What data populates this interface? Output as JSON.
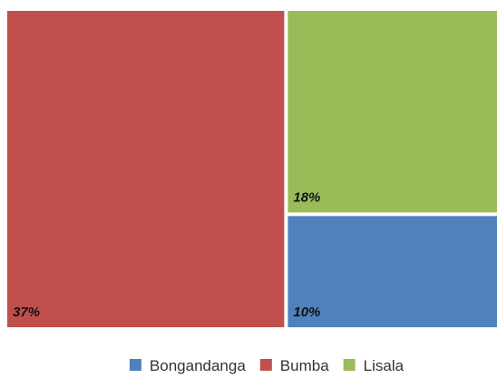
{
  "chart_data": {
    "type": "treemap",
    "series": [
      {
        "name": "Bongandanga",
        "value": 10,
        "label": "10%",
        "color": "#4f81bd"
      },
      {
        "name": "Bumba",
        "value": 37,
        "label": "37%",
        "color": "#c0504d"
      },
      {
        "name": "Lisala",
        "value": 18,
        "label": "18%",
        "color": "#9bbb59"
      }
    ],
    "legend": {
      "position": "bottom",
      "entries": [
        "Bongandanga",
        "Bumba",
        "Lisala"
      ]
    }
  }
}
